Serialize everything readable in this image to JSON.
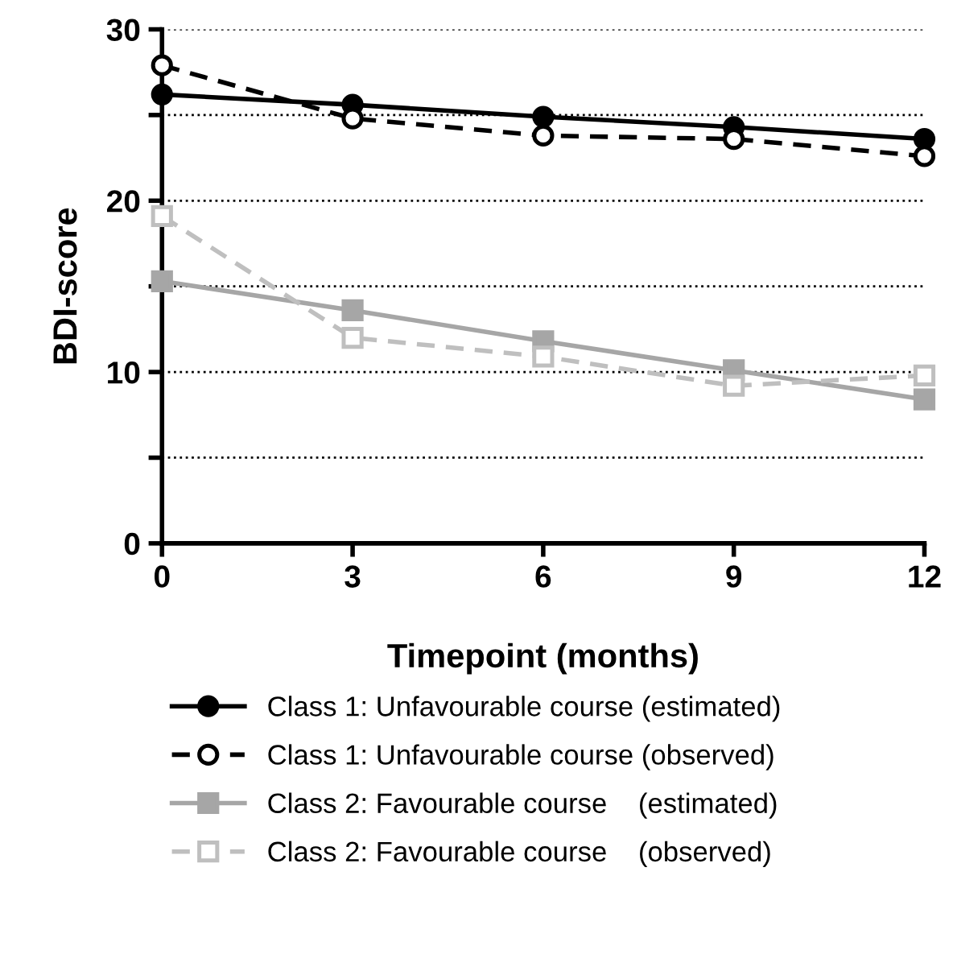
{
  "chart_data": {
    "type": "line",
    "xlabel": "Timepoint (months)",
    "ylabel": "BDI-score",
    "x": [
      0,
      3,
      6,
      9,
      12
    ],
    "xlim": [
      0,
      12
    ],
    "xticks": [
      0,
      3,
      6,
      9,
      12
    ],
    "ylim": [
      0,
      30
    ],
    "yticks": [
      0,
      {
        "value": 5,
        "label": null
      },
      10,
      {
        "value": 15,
        "label": null
      },
      20,
      {
        "value": 25,
        "label": null
      },
      30
    ],
    "grid": "y",
    "legend": "bottom",
    "series": [
      {
        "name": "Class 1: Unfavourable course (estimated)",
        "color": "#000000",
        "values": [
          26.2,
          25.6,
          24.9,
          24.3,
          23.6
        ],
        "marker": "circle",
        "line_style": "solid"
      },
      {
        "name": "Class 1: Unfavourable course (observed)",
        "color": "#000000",
        "values": [
          27.9,
          24.8,
          23.8,
          23.6,
          22.6
        ],
        "marker": "circle",
        "line_style": "dashed"
      },
      {
        "name": "Class 2: Favourable course    (estimated)",
        "color": "#a6a6a6",
        "values": [
          15.3,
          13.6,
          11.8,
          10.1,
          8.4
        ],
        "marker": "square",
        "line_style": "solid"
      },
      {
        "name": "Class 2: Favourable course    (observed)",
        "color": "#bfbfbf",
        "values": [
          19.1,
          12.0,
          10.9,
          9.2,
          9.8
        ],
        "marker": "square",
        "line_style": "dashed"
      }
    ]
  }
}
